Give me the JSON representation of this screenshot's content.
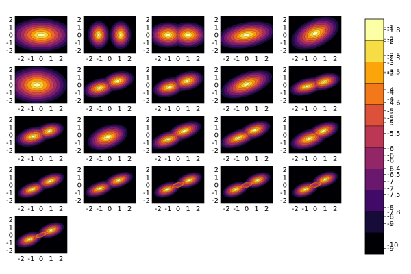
{
  "figure": {
    "panel_count": 21,
    "grid": {
      "rows": 5,
      "cols": 5
    }
  },
  "chart_data": {
    "type": "heatmap",
    "subtype": "filled-contour small multiples",
    "x_ticks": [
      "-2",
      "-1",
      "0",
      "1",
      "2"
    ],
    "y_ticks": [
      "2",
      "1",
      "0",
      "-1",
      "-2"
    ],
    "xlim": [
      -2.6,
      2.6
    ],
    "ylim": [
      -2.4,
      2.4
    ],
    "grid": false,
    "colormap": [
      "#000004",
      "#1b0c41",
      "#4a0c6b",
      "#781c6d",
      "#a52c60",
      "#cf4446",
      "#ed6925",
      "#fb9b06",
      "#f7d13d",
      "#fcffa4"
    ],
    "legend": {
      "placement": "right",
      "bands": [
        "#fcffa4",
        "#f6dc45",
        "#fca50a",
        "#f37819",
        "#dd513a",
        "#bc3754",
        "#932667",
        "#6a176e",
        "#420a68",
        "#160b39",
        "#000004"
      ],
      "tick_labels": [
        "-1",
        "-1.8",
        "-2",
        "-2",
        "-2.5",
        "-2.5",
        "-3",
        "-3",
        "-3.5",
        "-3",
        "-4",
        "-4",
        "-4",
        "-4.6",
        "-5",
        "-5",
        "-5",
        "-5.5",
        "-6",
        "-6",
        "-6",
        "-6.4",
        "-6.5",
        "-7",
        "-7",
        "-7.5",
        "-8",
        "-7.8",
        "-8",
        "-9",
        "-10",
        "-9"
      ]
    },
    "panels": [
      {
        "type": "heatmap",
        "blobs": [
          {
            "x": 0,
            "y": 0,
            "rx": 2.0,
            "ry": 1.35,
            "rot": 0,
            "depth": 1.0
          }
        ]
      },
      {
        "type": "heatmap",
        "blobs": [
          {
            "x": -1.1,
            "y": 0,
            "rx": 0.8,
            "ry": 1.35,
            "rot": 0,
            "depth": 0.85
          },
          {
            "x": 1.1,
            "y": 0,
            "rx": 0.8,
            "ry": 1.35,
            "rot": 0,
            "depth": 0.85
          }
        ]
      },
      {
        "type": "heatmap",
        "blobs": [
          {
            "x": -1.0,
            "y": 0,
            "rx": 1.3,
            "ry": 1.1,
            "rot": 0,
            "depth": 0.95
          },
          {
            "x": 1.0,
            "y": 0,
            "rx": 1.3,
            "ry": 1.1,
            "rot": 0,
            "depth": 0.95
          }
        ]
      },
      {
        "type": "heatmap",
        "blobs": [
          {
            "x": 0,
            "y": 0,
            "rx": 2.0,
            "ry": 1.1,
            "rot": -10,
            "depth": 0.95
          }
        ]
      },
      {
        "type": "heatmap",
        "blobs": [
          {
            "x": 0,
            "y": 0.2,
            "rx": 1.7,
            "ry": 1.2,
            "rot": -25,
            "depth": 0.95
          }
        ]
      },
      {
        "type": "heatmap",
        "blobs": [
          {
            "x": -0.4,
            "y": 0,
            "rx": 1.9,
            "ry": 1.5,
            "rot": 0,
            "depth": 1.0
          }
        ]
      },
      {
        "type": "heatmap",
        "blobs": [
          {
            "x": -1.0,
            "y": -0.4,
            "rx": 1.1,
            "ry": 0.8,
            "rot": -15,
            "depth": 0.95
          },
          {
            "x": 0.8,
            "y": 0.5,
            "rx": 1.1,
            "ry": 0.8,
            "rot": -15,
            "depth": 0.95
          }
        ]
      },
      {
        "type": "heatmap",
        "blobs": [
          {
            "x": -0.9,
            "y": -0.3,
            "rx": 1.1,
            "ry": 0.8,
            "rot": -15,
            "depth": 0.95
          },
          {
            "x": 0.9,
            "y": 0.5,
            "rx": 1.1,
            "ry": 0.8,
            "rot": -15,
            "depth": 0.95
          }
        ]
      },
      {
        "type": "heatmap",
        "blobs": [
          {
            "x": 0,
            "y": 0.1,
            "rx": 1.8,
            "ry": 1.0,
            "rot": -20,
            "depth": 0.95
          }
        ]
      },
      {
        "type": "heatmap",
        "blobs": [
          {
            "x": -0.8,
            "y": -0.2,
            "rx": 1.2,
            "ry": 0.7,
            "rot": -15,
            "depth": 0.95
          },
          {
            "x": 0.9,
            "y": 0.4,
            "rx": 1.1,
            "ry": 0.7,
            "rot": -15,
            "depth": 0.95
          }
        ]
      },
      {
        "type": "heatmap",
        "blobs": [
          {
            "x": -0.8,
            "y": -0.2,
            "rx": 1.2,
            "ry": 0.8,
            "rot": -15,
            "depth": 0.95
          },
          {
            "x": 0.8,
            "y": 0.5,
            "rx": 1.0,
            "ry": 0.7,
            "rot": -15,
            "depth": 0.95
          }
        ]
      },
      {
        "type": "heatmap",
        "blobs": [
          {
            "x": -0.2,
            "y": -0.3,
            "rx": 1.4,
            "ry": 1.0,
            "rot": -20,
            "depth": 0.95
          }
        ]
      },
      {
        "type": "heatmap",
        "blobs": [
          {
            "x": -1.0,
            "y": -0.6,
            "rx": 1.2,
            "ry": 0.7,
            "rot": -20,
            "depth": 0.95
          },
          {
            "x": 0.6,
            "y": 0.5,
            "rx": 1.2,
            "ry": 0.7,
            "rot": -20,
            "depth": 0.95
          }
        ]
      },
      {
        "type": "heatmap",
        "blobs": [
          {
            "x": -0.8,
            "y": -0.4,
            "rx": 1.3,
            "ry": 0.7,
            "rot": -20,
            "depth": 0.95
          },
          {
            "x": 0.8,
            "y": 0.6,
            "rx": 1.1,
            "ry": 0.7,
            "rot": -20,
            "depth": 0.95
          }
        ]
      },
      {
        "type": "heatmap",
        "blobs": [
          {
            "x": -0.6,
            "y": -0.5,
            "rx": 1.3,
            "ry": 0.8,
            "rot": -20,
            "depth": 0.95
          },
          {
            "x": 0.8,
            "y": 0.5,
            "rx": 1.1,
            "ry": 0.7,
            "rot": -20,
            "depth": 0.95
          }
        ]
      },
      {
        "type": "heatmap",
        "blobs": [
          {
            "x": -0.9,
            "y": -0.6,
            "rx": 1.0,
            "ry": 0.6,
            "rot": -20,
            "depth": 0.95
          },
          {
            "x": 0.9,
            "y": 0.5,
            "rx": 1.0,
            "ry": 0.6,
            "rot": -20,
            "depth": 0.95
          }
        ]
      },
      {
        "type": "heatmap",
        "blobs": [
          {
            "x": -1.0,
            "y": -0.5,
            "rx": 1.0,
            "ry": 0.6,
            "rot": -20,
            "depth": 0.95
          },
          {
            "x": 0.9,
            "y": 0.6,
            "rx": 1.0,
            "ry": 0.6,
            "rot": -20,
            "depth": 0.95
          }
        ]
      },
      {
        "type": "heatmap",
        "blobs": [
          {
            "x": -1.1,
            "y": -0.6,
            "rx": 0.9,
            "ry": 0.6,
            "rot": -20,
            "depth": 0.95
          },
          {
            "x": 1.1,
            "y": 0.6,
            "rx": 0.9,
            "ry": 0.6,
            "rot": -20,
            "depth": 0.95
          }
        ],
        "dip": {
          "x": 0,
          "y": 0,
          "rx": 0.7,
          "ry": 0.35,
          "rot": -20
        }
      },
      {
        "type": "heatmap",
        "blobs": [
          {
            "x": -1.1,
            "y": -0.6,
            "rx": 0.9,
            "ry": 0.6,
            "rot": -20,
            "depth": 0.95
          },
          {
            "x": 1.1,
            "y": 0.6,
            "rx": 0.9,
            "ry": 0.6,
            "rot": -20,
            "depth": 0.95
          }
        ],
        "dip": {
          "x": 0,
          "y": 0,
          "rx": 0.7,
          "ry": 0.35,
          "rot": -20
        }
      },
      {
        "type": "heatmap",
        "blobs": [
          {
            "x": -1.0,
            "y": -0.6,
            "rx": 0.9,
            "ry": 0.6,
            "rot": -20,
            "depth": 0.95
          },
          {
            "x": 1.0,
            "y": 0.7,
            "rx": 0.9,
            "ry": 0.6,
            "rot": -20,
            "depth": 0.95
          }
        ],
        "dip": {
          "x": 0,
          "y": 0,
          "rx": 0.7,
          "ry": 0.35,
          "rot": -20
        }
      },
      {
        "type": "heatmap",
        "blobs": [
          {
            "x": -1.2,
            "y": -0.6,
            "rx": 0.9,
            "ry": 0.6,
            "rot": -20,
            "depth": 0.95
          },
          {
            "x": 1.0,
            "y": 0.6,
            "rx": 0.9,
            "ry": 0.6,
            "rot": -20,
            "depth": 0.95
          }
        ],
        "dip": {
          "x": 0,
          "y": 0,
          "rx": 0.6,
          "ry": 0.3,
          "rot": -20
        }
      }
    ]
  }
}
